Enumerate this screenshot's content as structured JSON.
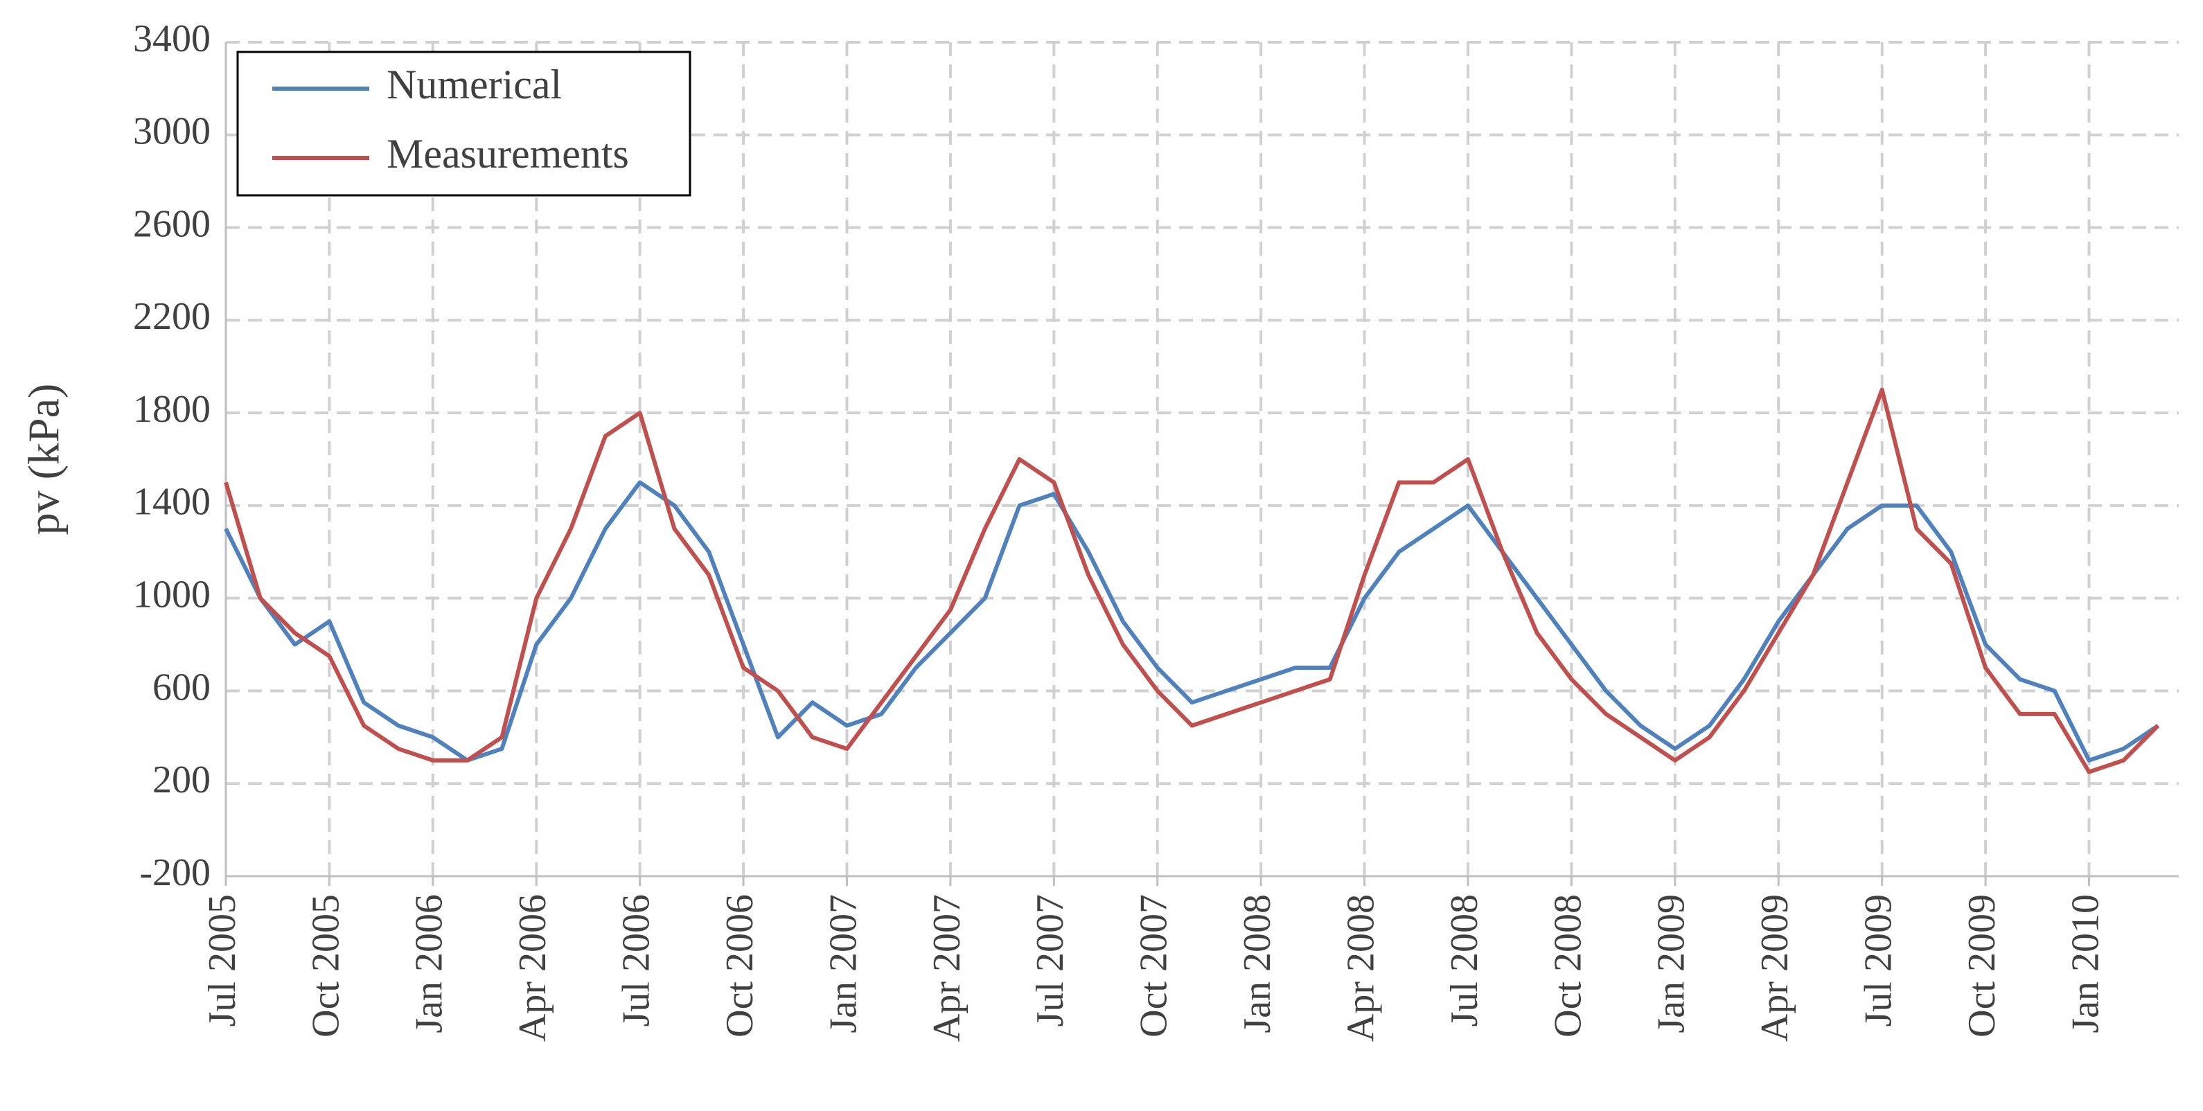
{
  "chart_data": {
    "type": "line",
    "ylabel": "pv (kPa)",
    "x": [
      "Jul 2005",
      null,
      null,
      "Oct 2005",
      null,
      null,
      "Jan 2006",
      null,
      null,
      "Apr 2006",
      null,
      null,
      "Jul 2006",
      null,
      null,
      "Oct 2006",
      null,
      null,
      "Jan 2007",
      null,
      null,
      "Apr 2007",
      null,
      null,
      "Jul 2007",
      null,
      null,
      "Oct 2007",
      null,
      null,
      "Jan 2008",
      null,
      null,
      "Apr 2008",
      null,
      null,
      "Jul 2008",
      null,
      null,
      "Oct 2008",
      null,
      null,
      "Jan 2009",
      null,
      null,
      "Apr 2009",
      null,
      null,
      "Jul 2009",
      null,
      null,
      "Oct 2009",
      null,
      null,
      "Jan 2010",
      null,
      null
    ],
    "series": [
      {
        "name": "Numerical",
        "color": "#4f81bd",
        "values": [
          1300,
          1000,
          800,
          900,
          550,
          450,
          400,
          300,
          350,
          800,
          1000,
          1300,
          1500,
          1400,
          1200,
          800,
          400,
          550,
          450,
          500,
          700,
          850,
          1000,
          1400,
          1450,
          1200,
          900,
          700,
          550,
          600,
          650,
          700,
          700,
          1000,
          1200,
          1300,
          1400,
          1200,
          1000,
          800,
          600,
          450,
          350,
          450,
          650,
          900,
          1100,
          1300,
          1400,
          1400,
          1200,
          800,
          650,
          600,
          300,
          350,
          450
        ]
      },
      {
        "name": "Measurements",
        "color": "#c0504d",
        "values": [
          1500,
          1000,
          850,
          750,
          450,
          350,
          300,
          300,
          400,
          1000,
          1300,
          1700,
          1800,
          1300,
          1100,
          700,
          600,
          400,
          350,
          550,
          750,
          950,
          1300,
          1600,
          1500,
          1100,
          800,
          600,
          450,
          500,
          550,
          600,
          650,
          1100,
          1500,
          1500,
          1600,
          1200,
          850,
          650,
          500,
          400,
          300,
          400,
          600,
          850,
          1100,
          1500,
          1900,
          1300,
          1150,
          700,
          500,
          500,
          250,
          300,
          450
        ]
      }
    ],
    "ylim": [
      -200,
      3400
    ],
    "yticks": [
      -200,
      200,
      600,
      1000,
      1400,
      1800,
      2200,
      2600,
      3000,
      3400
    ],
    "grid": true,
    "legend": "upper left"
  }
}
